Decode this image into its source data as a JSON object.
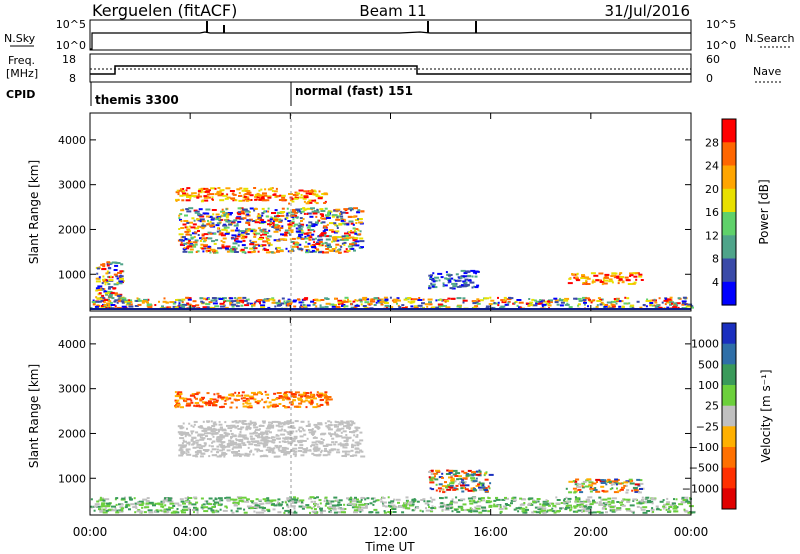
{
  "header": {
    "station": "Kerguelen (fitACF)",
    "beam": "Beam 11",
    "date": "31/Jul/2016"
  },
  "status_panels": {
    "nsky_label": "N.Sky",
    "nsky_ticks": [
      "10^5",
      "10^0"
    ],
    "nsearch_label": "N.Search",
    "nsearch_ticks": [
      "10^5",
      "10^0"
    ],
    "freq_label_1": "Freq.",
    "freq_label_2": "[MHz]",
    "freq_ticks": [
      "18",
      "8"
    ],
    "nave_label": "Nave",
    "nave_ticks": [
      "60",
      "0"
    ],
    "cpid_label": "CPID",
    "cpid_entries": [
      {
        "label": "themis 3300",
        "start_hour": 0
      },
      {
        "label": "normal (fast) 151",
        "start_hour": 8.05
      }
    ]
  },
  "x_axis": {
    "label": "Time UT",
    "ticks": [
      "00:00",
      "04:00",
      "08:00",
      "12:00",
      "16:00",
      "20:00",
      "00:00"
    ],
    "range_hours": [
      0,
      24
    ]
  },
  "chart_data": [
    {
      "type": "heatmap",
      "panel": "power",
      "ylabel": "Slant Range [km]",
      "ylim": [
        180,
        4600
      ],
      "y_ticks": [
        1000,
        2000,
        3000,
        4000
      ],
      "colorbar_label": "Power [dB]",
      "colorbar_ticks": [
        "28",
        "24",
        "20",
        "16",
        "12",
        "8",
        "4"
      ],
      "colorbar_colors": [
        "#ff0000",
        "#ff6600",
        "#ffa500",
        "#e8e000",
        "#5fd16a",
        "#4fa48a",
        "#3a4aa8",
        "#0000ff"
      ],
      "echo_regions": [
        {
          "t0": 0.2,
          "t1": 1.3,
          "r0": 250,
          "r1": 1300,
          "level": "mixed"
        },
        {
          "t0": 3.3,
          "t1": 7.8,
          "r0": 2650,
          "r1": 2950,
          "level": "high"
        },
        {
          "t0": 3.5,
          "t1": 10.8,
          "r0": 1500,
          "r1": 2500,
          "level": "mixed"
        },
        {
          "t0": 7.8,
          "t1": 9.4,
          "r0": 2600,
          "r1": 2900,
          "level": "high"
        },
        {
          "t0": 13.5,
          "t1": 15.5,
          "r0": 700,
          "r1": 1100,
          "level": "low"
        },
        {
          "t0": 19.0,
          "t1": 22.0,
          "r0": 800,
          "r1": 1050,
          "level": "high"
        },
        {
          "t0": 0.0,
          "t1": 24.0,
          "r0": 250,
          "r1": 500,
          "level": "mixed"
        }
      ]
    },
    {
      "type": "heatmap",
      "panel": "velocity",
      "ylabel": "Slant Range [km]",
      "ylim": [
        180,
        4600
      ],
      "y_ticks": [
        1000,
        2000,
        3000,
        4000
      ],
      "colorbar_label": "Velocity [m s⁻¹]",
      "colorbar_ticks": [
        "1000",
        "500",
        "100",
        "25",
        "−25",
        "−100",
        "−500",
        "−1000"
      ],
      "colorbar_colors": [
        "#1a2fbf",
        "#2f6fa8",
        "#3a9a5a",
        "#6cd03c",
        "#c0c0c0",
        "#ffb000",
        "#ff7000",
        "#ff3000",
        "#e00000"
      ],
      "echo_regions": [
        {
          "t0": 3.3,
          "t1": 9.5,
          "r0": 2600,
          "r1": 2950,
          "level": "negative"
        },
        {
          "t0": 3.5,
          "t1": 10.8,
          "r0": 1500,
          "r1": 2300,
          "level": "near-zero"
        },
        {
          "t0": 13.5,
          "t1": 16.0,
          "r0": 700,
          "r1": 1200,
          "level": "mixed"
        },
        {
          "t0": 19.0,
          "t1": 22.0,
          "r0": 700,
          "r1": 1000,
          "level": "mixed"
        },
        {
          "t0": 0.0,
          "t1": 24.0,
          "r0": 250,
          "r1": 600,
          "level": "positive"
        }
      ]
    }
  ]
}
